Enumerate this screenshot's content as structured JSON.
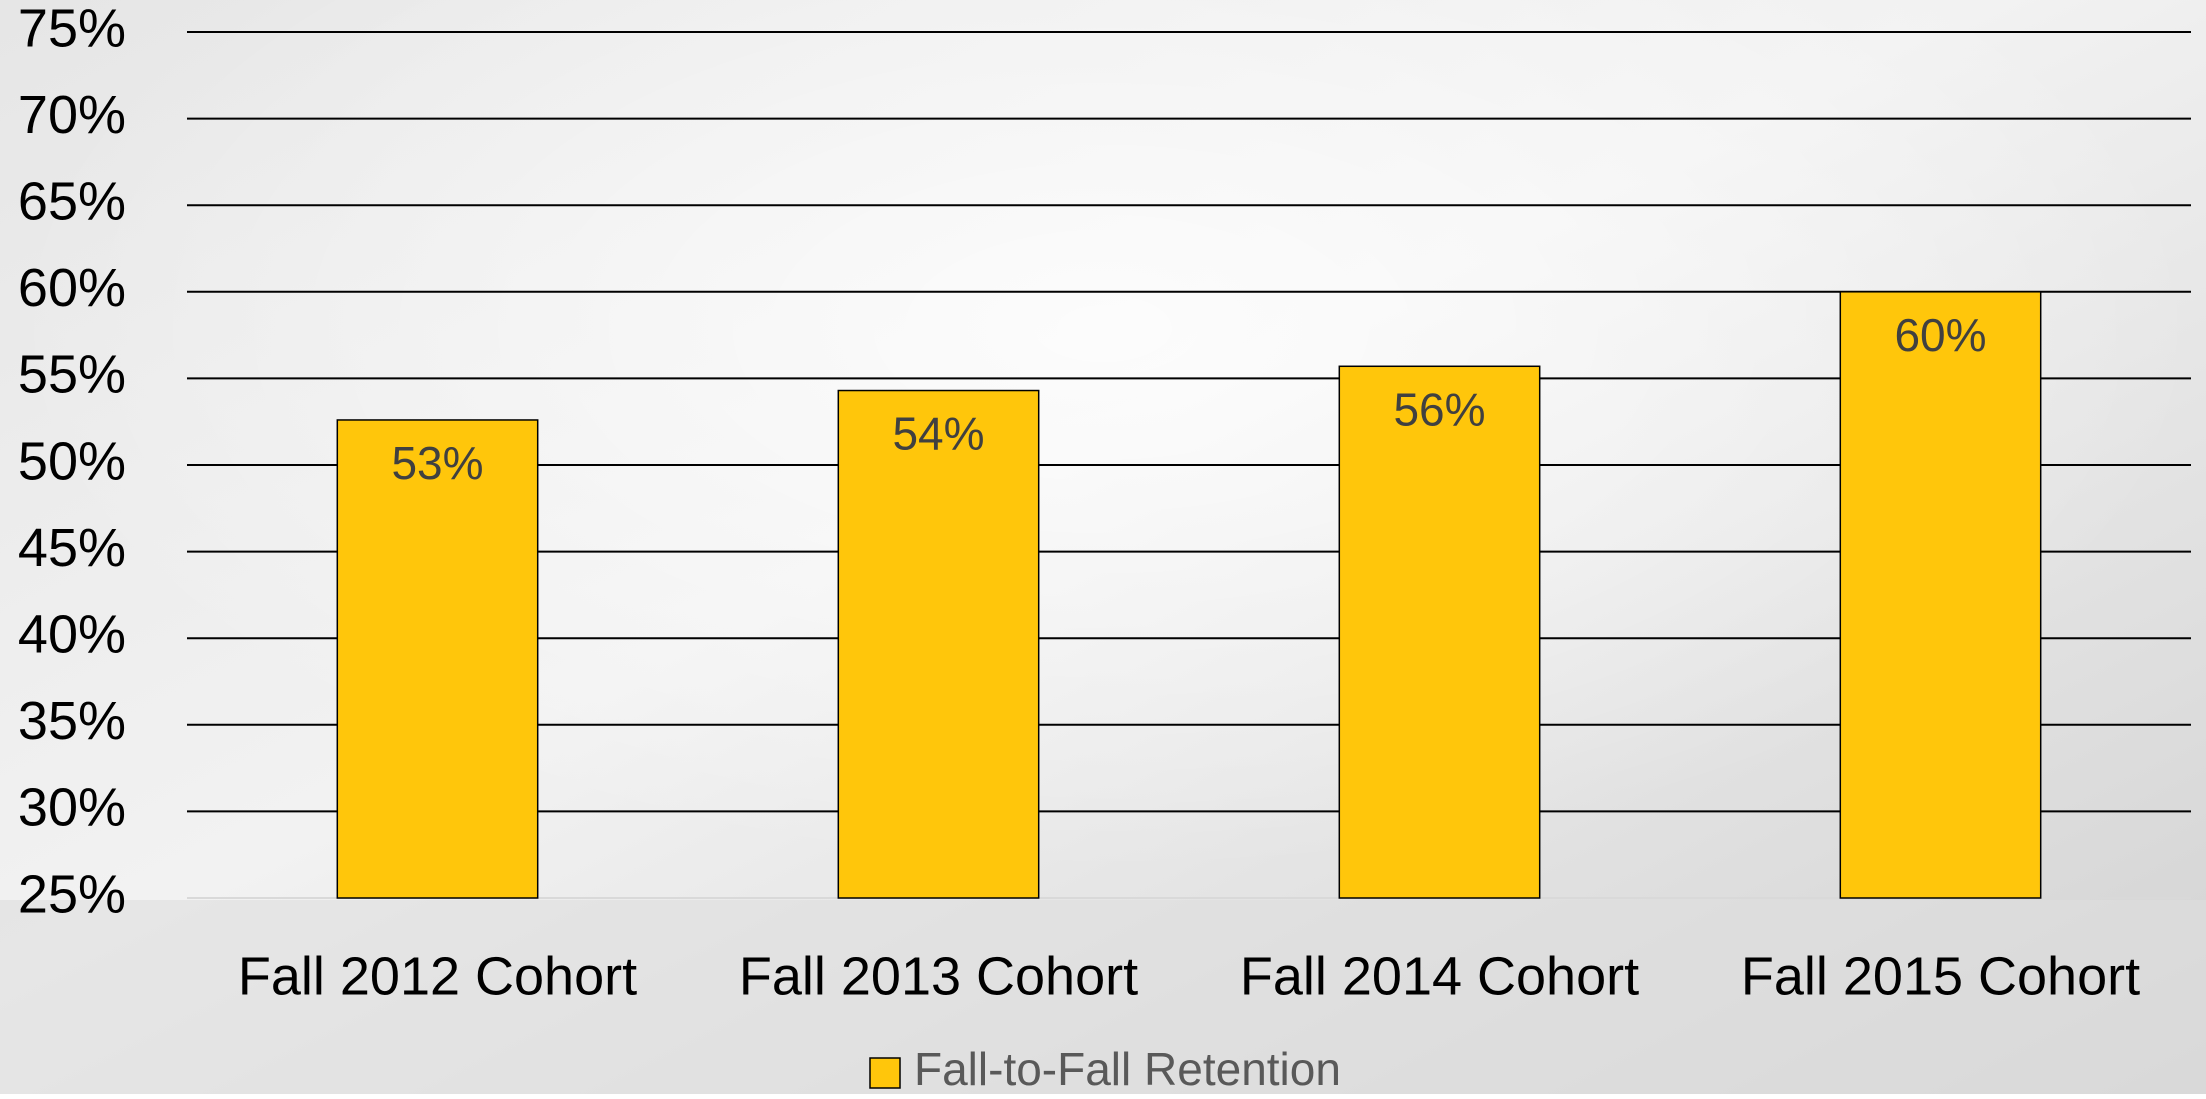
{
  "chart_data": {
    "type": "bar",
    "categories": [
      "Fall 2012 Cohort",
      "Fall 2013 Cohort",
      "Fall 2014 Cohort",
      "Fall 2015 Cohort"
    ],
    "series": [
      {
        "name": "Fall-to-Fall Retention",
        "color": "#ffc60b",
        "values": [
          52.6,
          54.3,
          55.7,
          60.0
        ],
        "value_labels": [
          "53%",
          "54%",
          "56%",
          "60%"
        ]
      }
    ],
    "ylim": [
      25,
      75
    ],
    "yticks": [
      {
        "value": 25,
        "label": "25%"
      },
      {
        "value": 30,
        "label": "30%"
      },
      {
        "value": 35,
        "label": "35%"
      },
      {
        "value": 40,
        "label": "40%"
      },
      {
        "value": 45,
        "label": "45%"
      },
      {
        "value": 50,
        "label": "50%"
      },
      {
        "value": 55,
        "label": "55%"
      },
      {
        "value": 60,
        "label": "60%"
      },
      {
        "value": 65,
        "label": "65%"
      },
      {
        "value": 70,
        "label": "70%"
      },
      {
        "value": 75,
        "label": "75%"
      }
    ],
    "grid": true,
    "legend": "bottom"
  }
}
